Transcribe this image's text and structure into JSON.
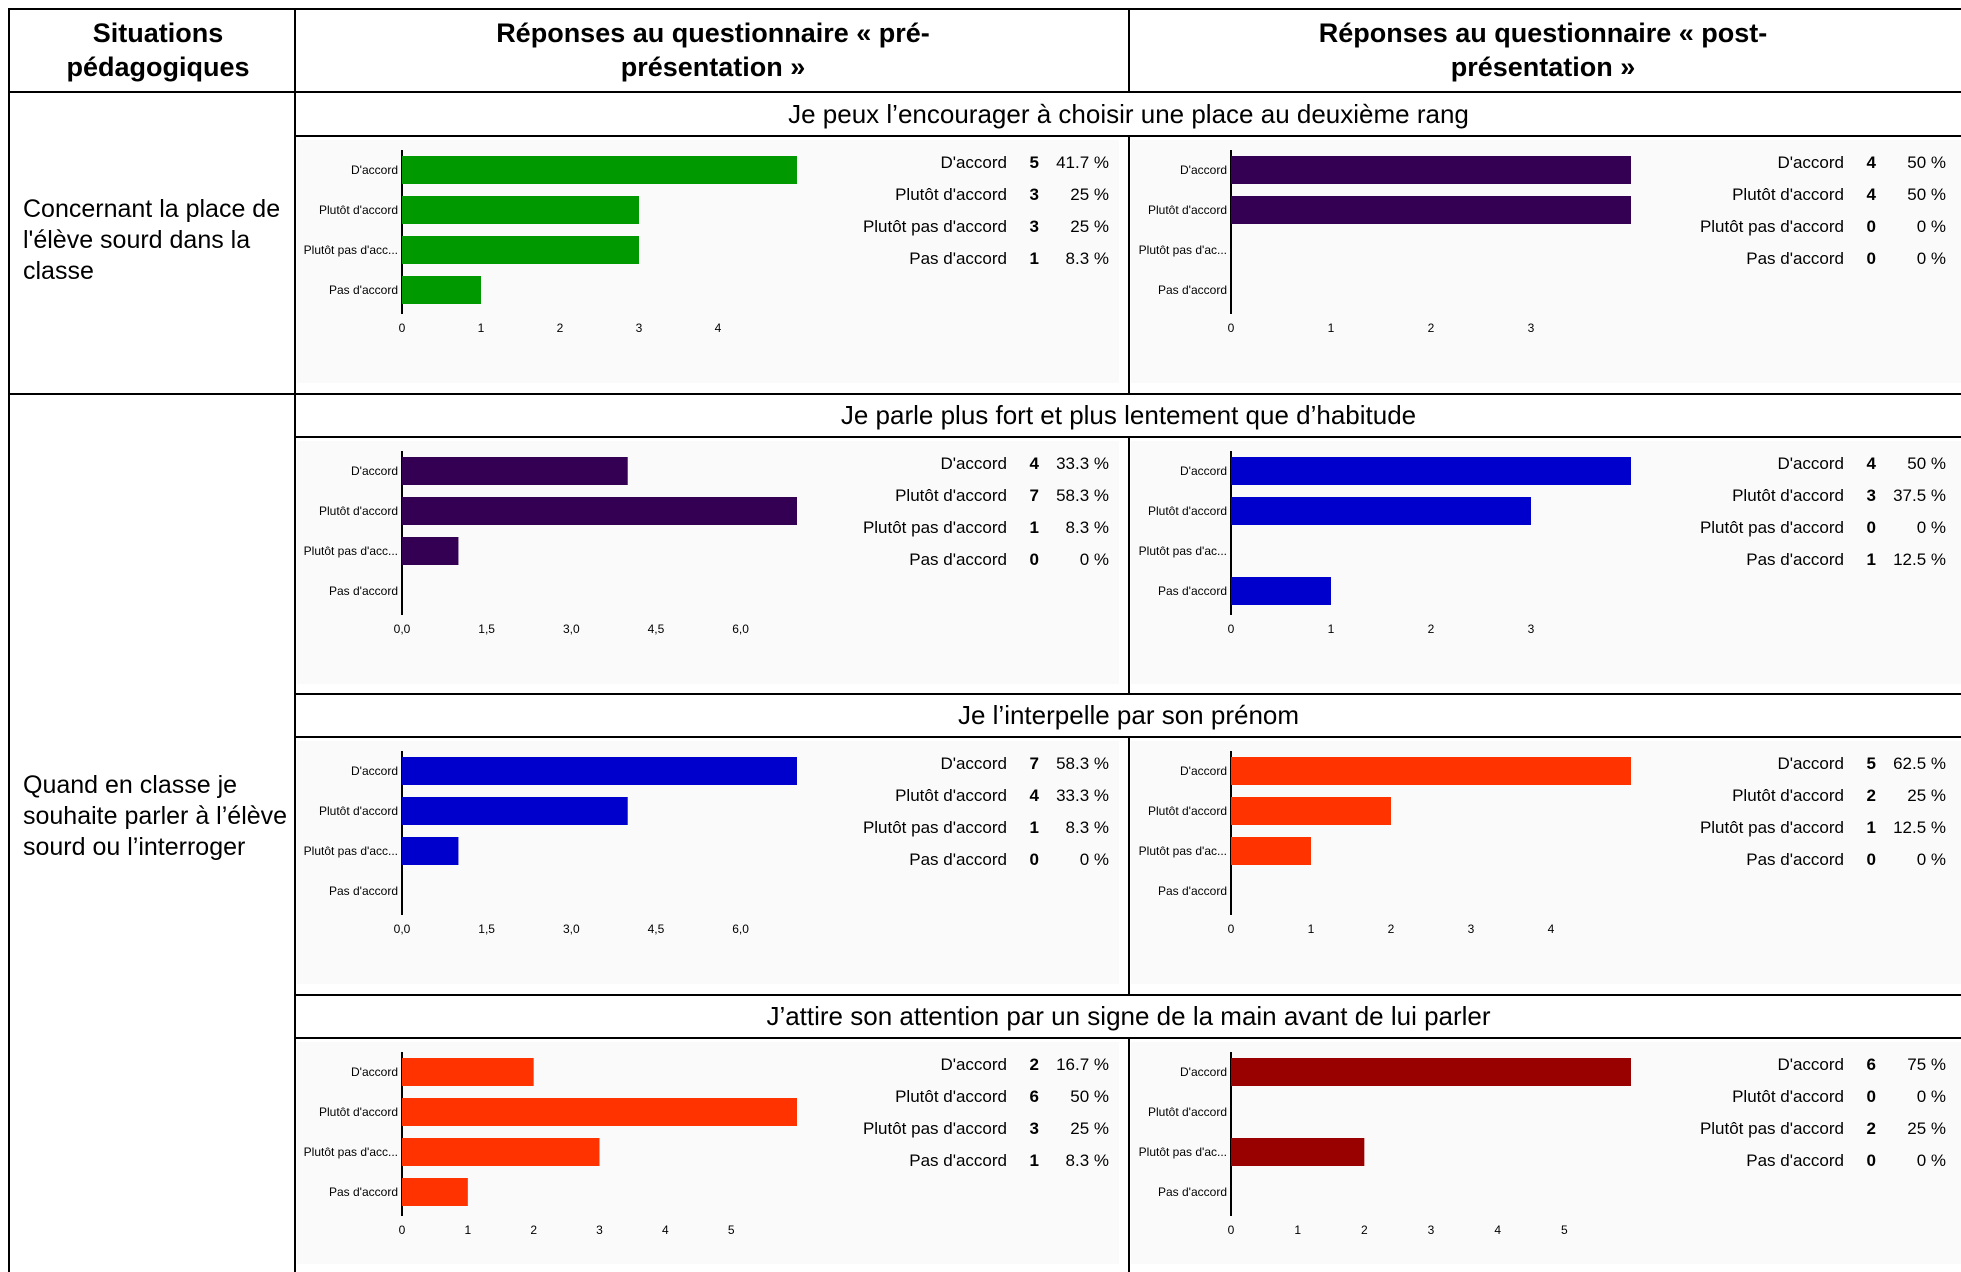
{
  "table": {
    "headers": {
      "situations": "Situations pédagogiques",
      "pre": "Réponses au questionnaire « pré-présentation »",
      "post": "Réponses au questionnaire « post-présentation »"
    },
    "situations": [
      "Concernant la place de l'élève sourd dans la classe",
      "Quand en classe je souhaite parler à l’élève sourd ou l’interroger"
    ],
    "questions": [
      "Je peux l’encourager à choisir une place au deuxième rang",
      "Je parle plus fort et plus lentement que d’habitude",
      "Je l’interpelle par son prénom",
      "J’attire son attention par un signe de la main avant de lui parler"
    ]
  },
  "chart_data": [
    {
      "type": "bar",
      "orientation": "horizontal",
      "row": 0,
      "phase": "pre",
      "color": "#009900",
      "categories": [
        "D'accord",
        "Plutôt d'accord",
        "Plutôt pas d'acc...",
        "Pas d'accord"
      ],
      "values": [
        5,
        3,
        3,
        1
      ],
      "xlim": [
        0,
        5
      ],
      "xticks": [
        "0",
        "1",
        "2",
        "3",
        "4"
      ],
      "legend": {
        "labels": [
          "D'accord",
          "Plutôt d'accord",
          "Plutôt pas d'accord",
          "Pas d'accord"
        ],
        "counts": [
          "5",
          "3",
          "3",
          "1"
        ],
        "percents": [
          "41.7 %",
          "25 %",
          "25 %",
          "8.3 %"
        ]
      }
    },
    {
      "type": "bar",
      "orientation": "horizontal",
      "row": 0,
      "phase": "post",
      "color": "#330054",
      "categories": [
        "D'accord",
        "Plutôt d'accord",
        "Plutôt pas d'ac...",
        "Pas d'accord"
      ],
      "values": [
        4,
        4,
        0,
        0
      ],
      "xlim": [
        0,
        4
      ],
      "xticks": [
        "0",
        "1",
        "2",
        "3"
      ],
      "legend": {
        "labels": [
          "D'accord",
          "Plutôt d'accord",
          "Plutôt pas d'accord",
          "Pas d'accord"
        ],
        "counts": [
          "4",
          "4",
          "0",
          "0"
        ],
        "percents": [
          "50 %",
          "50 %",
          "0 %",
          "0 %"
        ]
      }
    },
    {
      "type": "bar",
      "orientation": "horizontal",
      "row": 1,
      "phase": "pre",
      "color": "#330054",
      "categories": [
        "D'accord",
        "Plutôt d'accord",
        "Plutôt pas d'acc...",
        "Pas d'accord"
      ],
      "values": [
        4,
        7,
        1,
        0
      ],
      "xlim": [
        0,
        7
      ],
      "xticks": [
        "0,0",
        "1,5",
        "3,0",
        "4,5",
        "6,0"
      ],
      "legend": {
        "labels": [
          "D'accord",
          "Plutôt d'accord",
          "Plutôt pas d'accord",
          "Pas d'accord"
        ],
        "counts": [
          "4",
          "7",
          "1",
          "0"
        ],
        "percents": [
          "33.3 %",
          "58.3 %",
          "8.3 %",
          "0 %"
        ]
      }
    },
    {
      "type": "bar",
      "orientation": "horizontal",
      "row": 1,
      "phase": "post",
      "color": "#0000cc",
      "categories": [
        "D'accord",
        "Plutôt d'accord",
        "Plutôt pas d'ac...",
        "Pas d'accord"
      ],
      "values": [
        4,
        3,
        0,
        1
      ],
      "xlim": [
        0,
        4
      ],
      "xticks": [
        "0",
        "1",
        "2",
        "3"
      ],
      "legend": {
        "labels": [
          "D'accord",
          "Plutôt d'accord",
          "Plutôt pas d'accord",
          "Pas d'accord"
        ],
        "counts": [
          "4",
          "3",
          "0",
          "1"
        ],
        "percents": [
          "50 %",
          "37.5 %",
          "0 %",
          "12.5 %"
        ]
      }
    },
    {
      "type": "bar",
      "orientation": "horizontal",
      "row": 2,
      "phase": "pre",
      "color": "#0000cc",
      "categories": [
        "D'accord",
        "Plutôt d'accord",
        "Plutôt pas d'acc...",
        "Pas d'accord"
      ],
      "values": [
        7,
        4,
        1,
        0
      ],
      "xlim": [
        0,
        7
      ],
      "xticks": [
        "0,0",
        "1,5",
        "3,0",
        "4,5",
        "6,0"
      ],
      "legend": {
        "labels": [
          "D'accord",
          "Plutôt d'accord",
          "Plutôt pas d'accord",
          "Pas d'accord"
        ],
        "counts": [
          "7",
          "4",
          "1",
          "0"
        ],
        "percents": [
          "58.3 %",
          "33.3 %",
          "8.3 %",
          "0 %"
        ]
      }
    },
    {
      "type": "bar",
      "orientation": "horizontal",
      "row": 2,
      "phase": "post",
      "color": "#ff3300",
      "categories": [
        "D'accord",
        "Plutôt d'accord",
        "Plutôt pas d'ac...",
        "Pas d'accord"
      ],
      "values": [
        5,
        2,
        1,
        0
      ],
      "xlim": [
        0,
        5
      ],
      "xticks": [
        "0",
        "1",
        "2",
        "3",
        "4"
      ],
      "legend": {
        "labels": [
          "D'accord",
          "Plutôt d'accord",
          "Plutôt pas d'accord",
          "Pas d'accord"
        ],
        "counts": [
          "5",
          "2",
          "1",
          "0"
        ],
        "percents": [
          "62.5 %",
          "25 %",
          "12.5 %",
          "0 %"
        ]
      }
    },
    {
      "type": "bar",
      "orientation": "horizontal",
      "row": 3,
      "phase": "pre",
      "color": "#ff3300",
      "categories": [
        "D'accord",
        "Plutôt d'accord",
        "Plutôt pas d'acc...",
        "Pas d'accord"
      ],
      "values": [
        2,
        6,
        3,
        1
      ],
      "xlim": [
        0,
        6
      ],
      "xticks": [
        "0",
        "1",
        "2",
        "3",
        "4",
        "5"
      ],
      "legend": {
        "labels": [
          "D'accord",
          "Plutôt d'accord",
          "Plutôt pas d'accord",
          "Pas d'accord"
        ],
        "counts": [
          "2",
          "6",
          "3",
          "1"
        ],
        "percents": [
          "16.7 %",
          "50 %",
          "25 %",
          "8.3 %"
        ]
      }
    },
    {
      "type": "bar",
      "orientation": "horizontal",
      "row": 3,
      "phase": "post",
      "color": "#990000",
      "categories": [
        "D'accord",
        "Plutôt d'accord",
        "Plutôt pas d'ac...",
        "Pas d'accord"
      ],
      "values": [
        6,
        0,
        2,
        0
      ],
      "xlim": [
        0,
        6
      ],
      "xticks": [
        "0",
        "1",
        "2",
        "3",
        "4",
        "5"
      ],
      "legend": {
        "labels": [
          "D'accord",
          "Plutôt d'accord",
          "Plutôt pas d'accord",
          "Pas d'accord"
        ],
        "counts": [
          "6",
          "0",
          "2",
          "0"
        ],
        "percents": [
          "75 %",
          "0 %",
          "25 %",
          "0 %"
        ]
      }
    }
  ]
}
